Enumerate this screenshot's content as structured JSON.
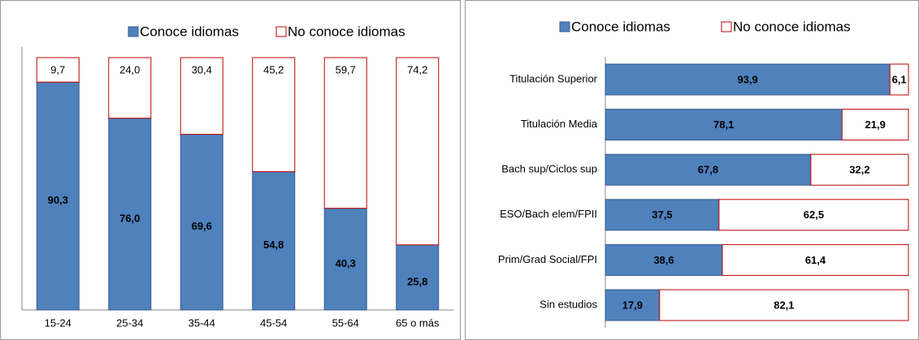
{
  "chart_data": [
    {
      "type": "stacked_bar",
      "categories": [
        "15-24",
        "25-34",
        "35-44",
        "45-54",
        "55-64",
        "65 o más"
      ],
      "series": [
        {
          "name": "Conoce idiomas",
          "color": "#4f81bd",
          "edgecolor": "#385d8a",
          "label_color": "#ffffff",
          "label_bold": true,
          "values": [
            90.3,
            76.0,
            69.6,
            54.8,
            40.3,
            25.8
          ],
          "value_labels": [
            "90,3",
            "76,0",
            "69,6",
            "54,8",
            "40,3",
            "25,8"
          ]
        },
        {
          "name": "No conoce idiomas",
          "color": "#ffffff",
          "edgecolor": "#c00000",
          "label_color": "#c00000",
          "label_bold": false,
          "values": [
            9.7,
            24.0,
            30.4,
            45.2,
            59.7,
            74.2
          ],
          "value_labels": [
            "9,7",
            "24,0",
            "30,4",
            "45,2",
            "59,7",
            "74,2"
          ]
        }
      ],
      "ylim": [
        0,
        100
      ]
    },
    {
      "type": "stacked_barh",
      "categories": [
        "Titulación Superior",
        "Titulación Media",
        "Bach sup/Ciclos sup",
        "ESO/Bach elem/FPII",
        "Prim/Grad Social/FPI",
        "Sin estudios"
      ],
      "series": [
        {
          "name": "Conoce idiomas",
          "color": "#4f81bd",
          "edgecolor": "#385d8a",
          "label_color": "#ffffff",
          "label_bold": true,
          "values": [
            93.9,
            78.1,
            67.8,
            37.5,
            38.6,
            17.9
          ],
          "value_labels": [
            "93,9",
            "78,1",
            "67,8",
            "37,5",
            "38,6",
            "17,9"
          ]
        },
        {
          "name": "No conoce idiomas",
          "color": "#ffffff",
          "edgecolor": "#c00000",
          "label_color": "#c00000",
          "label_bold": true,
          "values": [
            6.1,
            21.9,
            32.2,
            62.5,
            61.4,
            82.1
          ],
          "value_labels": [
            "6,1",
            "21,9",
            "32,2",
            "62,5",
            "61,4",
            "82,1"
          ]
        }
      ],
      "xlim": [
        0,
        100
      ]
    }
  ]
}
